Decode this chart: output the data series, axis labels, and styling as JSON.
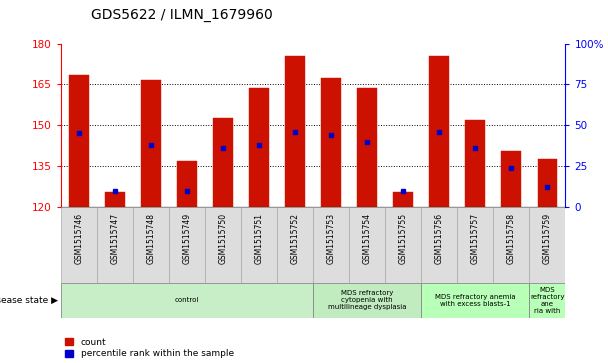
{
  "title": "GDS5622 / ILMN_1679960",
  "samples": [
    "GSM1515746",
    "GSM1515747",
    "GSM1515748",
    "GSM1515749",
    "GSM1515750",
    "GSM1515751",
    "GSM1515752",
    "GSM1515753",
    "GSM1515754",
    "GSM1515755",
    "GSM1515756",
    "GSM1515757",
    "GSM1515758",
    "GSM1515759"
  ],
  "count_values": [
    168.5,
    125.5,
    166.5,
    137.0,
    152.5,
    163.5,
    175.5,
    167.5,
    163.5,
    125.5,
    175.5,
    152.0,
    140.5,
    137.5
  ],
  "percentile_values": [
    45,
    10,
    38,
    10,
    36,
    38,
    46,
    44,
    40,
    10,
    46,
    36,
    24,
    12
  ],
  "y_min": 120,
  "y_max": 180,
  "y_ticks": [
    120,
    135,
    150,
    165,
    180
  ],
  "y2_ticks": [
    0,
    25,
    50,
    75,
    100
  ],
  "bar_color": "#cc1100",
  "dot_color": "#0000cc",
  "disease_groups": [
    {
      "label": "control",
      "start": 0,
      "end": 7
    },
    {
      "label": "MDS refractory\ncytopenia with\nmultilineage dysplasia",
      "start": 7,
      "end": 10
    },
    {
      "label": "MDS refractory anemia\nwith excess blasts-1",
      "start": 10,
      "end": 13
    },
    {
      "label": "MDS\nrefractory\nane\nria with",
      "start": 13,
      "end": 14
    }
  ],
  "legend_items": [
    {
      "label": "count",
      "color": "#cc1100",
      "marker": "s"
    },
    {
      "label": "percentile rank within the sample",
      "color": "#0000cc",
      "marker": "s"
    }
  ]
}
